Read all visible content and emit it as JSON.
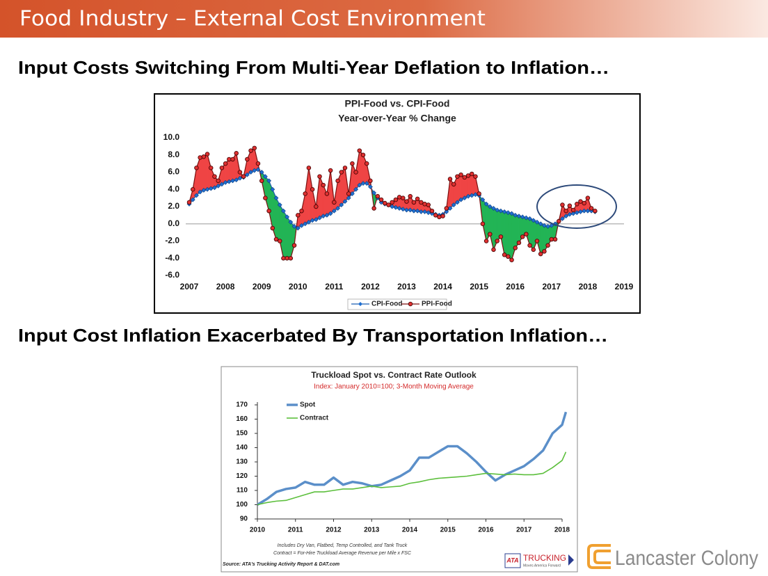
{
  "header": {
    "title": "Food Industry – External Cost Environment"
  },
  "sections": [
    {
      "heading": "Input Costs Switching From Multi-Year Deflation to Inflation…"
    },
    {
      "heading": "Input Cost Inflation Exacerbated By Transportation Inflation…"
    }
  ],
  "chart_data": [
    {
      "type": "line",
      "title": "PPI-Food vs. CPI-Food",
      "subtitle": "Year-over-Year % Change",
      "x": [
        2007.0,
        2007.1,
        2007.2,
        2007.3,
        2007.4,
        2007.5,
        2007.6,
        2007.7,
        2007.8,
        2007.9,
        2008.0,
        2008.1,
        2008.2,
        2008.3,
        2008.4,
        2008.5,
        2008.6,
        2008.7,
        2008.8,
        2008.9,
        2009.0,
        2009.1,
        2009.2,
        2009.3,
        2009.4,
        2009.5,
        2009.6,
        2009.7,
        2009.8,
        2009.9,
        2010.0,
        2010.1,
        2010.2,
        2010.3,
        2010.4,
        2010.5,
        2010.6,
        2010.7,
        2010.8,
        2010.9,
        2011.0,
        2011.1,
        2011.2,
        2011.3,
        2011.4,
        2011.5,
        2011.6,
        2011.7,
        2011.8,
        2011.9,
        2012.0,
        2012.1,
        2012.2,
        2012.3,
        2012.4,
        2012.5,
        2012.6,
        2012.7,
        2012.8,
        2012.9,
        2013.0,
        2013.1,
        2013.2,
        2013.3,
        2013.4,
        2013.5,
        2013.6,
        2013.7,
        2013.8,
        2013.9,
        2014.0,
        2014.1,
        2014.2,
        2014.3,
        2014.4,
        2014.5,
        2014.6,
        2014.7,
        2014.8,
        2014.9,
        2015.0,
        2015.1,
        2015.2,
        2015.3,
        2015.4,
        2015.5,
        2015.6,
        2015.7,
        2015.8,
        2015.9,
        2016.0,
        2016.1,
        2016.2,
        2016.3,
        2016.4,
        2016.5,
        2016.6,
        2016.7,
        2016.8,
        2016.9,
        2017.0,
        2017.1,
        2017.2,
        2017.3,
        2017.4,
        2017.5,
        2017.6,
        2017.7,
        2017.8,
        2017.9,
        2018.0,
        2018.1,
        2018.2
      ],
      "series": [
        {
          "name": "CPI-Food",
          "color": "#1f6fd1",
          "marker": "diamond",
          "values": [
            2.3,
            2.8,
            3.3,
            3.7,
            3.9,
            4.0,
            4.1,
            4.2,
            4.4,
            4.6,
            4.8,
            4.9,
            5.0,
            5.1,
            5.3,
            5.4,
            5.7,
            6.0,
            6.2,
            6.3,
            6.0,
            5.5,
            5.0,
            4.0,
            3.0,
            2.2,
            1.5,
            0.8,
            0.2,
            -0.3,
            -0.5,
            -0.2,
            0.0,
            0.2,
            0.4,
            0.5,
            0.7,
            0.9,
            1.0,
            1.2,
            1.5,
            1.8,
            2.2,
            2.6,
            3.0,
            3.5,
            4.0,
            4.5,
            4.7,
            4.7,
            4.3,
            3.6,
            3.0,
            2.5,
            2.3,
            2.2,
            2.0,
            1.9,
            1.8,
            1.7,
            1.6,
            1.6,
            1.5,
            1.5,
            1.4,
            1.4,
            1.3,
            1.2,
            1.1,
            1.0,
            1.1,
            1.4,
            1.8,
            2.2,
            2.5,
            2.8,
            3.0,
            3.2,
            3.3,
            3.4,
            3.3,
            2.8,
            2.3,
            2.0,
            1.8,
            1.6,
            1.5,
            1.4,
            1.3,
            1.2,
            1.0,
            0.9,
            0.8,
            0.7,
            0.6,
            0.4,
            0.2,
            0.0,
            -0.2,
            -0.3,
            -0.2,
            0.0,
            0.3,
            0.6,
            0.9,
            1.1,
            1.2,
            1.3,
            1.4,
            1.5,
            1.5,
            1.5,
            1.4
          ]
        },
        {
          "name": "PPI-Food",
          "color": "#e03131",
          "marker": "circle",
          "values": [
            2.5,
            4,
            6.5,
            7.7,
            7.8,
            8.1,
            6.5,
            5.5,
            5,
            6.5,
            7,
            7.5,
            7.5,
            8.2,
            6,
            5.5,
            7.5,
            8.5,
            8.8,
            7,
            5,
            3,
            1.5,
            -0.5,
            -1.8,
            -2,
            -4,
            -4,
            -4,
            -2.5,
            1,
            1.5,
            3.5,
            6.5,
            4,
            2,
            5.5,
            4.5,
            3.5,
            6.2,
            2.5,
            5,
            6,
            6.5,
            3.5,
            7,
            6,
            8.5,
            8,
            7,
            5,
            1.8,
            3.2,
            2.8,
            2.4,
            2.2,
            2.5,
            2.8,
            3.1,
            3,
            2.6,
            3.2,
            2.5,
            2.9,
            2.5,
            2.3,
            2.2,
            1.5,
            1,
            0.8,
            0.9,
            1.8,
            5.2,
            4.6,
            5.5,
            5.7,
            5.4,
            5.6,
            5.8,
            5.5,
            3.5,
            0,
            -2,
            -1.2,
            -3,
            -2,
            -1.5,
            -3.6,
            -3.8,
            -4.2,
            -2.8,
            -2.2,
            -1.5,
            -1.2,
            -2.5,
            -3,
            -2,
            -3.5,
            -3.2,
            -2.5,
            -1.8,
            -1.8,
            0.3,
            2.2,
            1.5,
            2.1,
            1.6,
            2.3,
            2.6,
            2.4,
            3,
            1.8,
            1.5
          ]
        }
      ],
      "fill_above_color": "#ef4444",
      "fill_below_color": "#22b455",
      "xlim": [
        2007,
        2019
      ],
      "xticks": [
        2007,
        2008,
        2009,
        2010,
        2011,
        2012,
        2013,
        2014,
        2015,
        2016,
        2017,
        2018,
        2019
      ],
      "ylim": [
        -6,
        10
      ],
      "yticks": [
        {
          "value": -6,
          "label": "-6.0"
        },
        {
          "value": -4,
          "label": "-4.0"
        },
        {
          "value": -2,
          "label": "-2.0"
        },
        {
          "value": 0,
          "label": "0.0"
        },
        {
          "value": 2,
          "label": "2.0"
        },
        {
          "value": 4,
          "label": "4.0"
        },
        {
          "value": 6,
          "label": "6.0"
        },
        {
          "value": 8,
          "label": "8.0"
        },
        {
          "value": 10,
          "label": "10.0"
        }
      ],
      "grid": false,
      "legend": "bottom"
    },
    {
      "type": "line",
      "title": "Truckload Spot vs. Contract Rate Outlook",
      "subtitle": "Index: January 2010=100; 3-Month Moving Average",
      "subtitle_color": "#d42a2a",
      "x": [
        2010.0,
        2010.25,
        2010.5,
        2010.75,
        2011.0,
        2011.25,
        2011.5,
        2011.75,
        2012.0,
        2012.25,
        2012.5,
        2012.75,
        2013.0,
        2013.25,
        2013.5,
        2013.75,
        2014.0,
        2014.25,
        2014.5,
        2014.75,
        2015.0,
        2015.25,
        2015.5,
        2015.75,
        2016.0,
        2016.25,
        2016.5,
        2016.75,
        2017.0,
        2017.25,
        2017.5,
        2017.75,
        2018.0,
        2018.1
      ],
      "series": [
        {
          "name": "Spot",
          "color": "#5b8fc9",
          "width": 3.5,
          "values": [
            100,
            104,
            109,
            111,
            112,
            116,
            114,
            114,
            119,
            114,
            116,
            115,
            113,
            114,
            117,
            120,
            124,
            133,
            133,
            137,
            141,
            141,
            136,
            130,
            123,
            117,
            121,
            124,
            127,
            132,
            138,
            150,
            156,
            165
          ]
        },
        {
          "name": "Contract",
          "color": "#5cbf3c",
          "width": 1.6,
          "values": [
            100,
            101.5,
            102.5,
            103,
            105,
            107,
            109,
            109,
            110,
            111,
            111,
            112,
            113,
            112,
            112.5,
            113,
            115,
            116,
            117.5,
            118.5,
            119,
            119.5,
            120,
            121,
            122,
            121.5,
            121,
            121.5,
            121,
            121,
            122,
            126,
            131,
            137
          ]
        }
      ],
      "xlim": [
        2010,
        2018
      ],
      "xticks": [
        2010,
        2011,
        2012,
        2013,
        2014,
        2015,
        2016,
        2017,
        2018
      ],
      "ylim": [
        90,
        170
      ],
      "yticks": [
        90,
        100,
        110,
        120,
        130,
        140,
        150,
        160,
        170
      ],
      "grid": false,
      "legend": "top-left",
      "notes": [
        "Includes Dry Van, Flatbed, Temp Controlled, and Tank Truck",
        "Contract = For-Hire Truckload Average Revenue per Mile x FSC"
      ],
      "source": "Source: ATA's Trucking Activity Report & DAT.com"
    }
  ],
  "ata_logo": {
    "mark": "ATA",
    "name": "TRUCKING",
    "tagline": "Moves America Forward"
  },
  "company_logo": "Lancaster Colony"
}
